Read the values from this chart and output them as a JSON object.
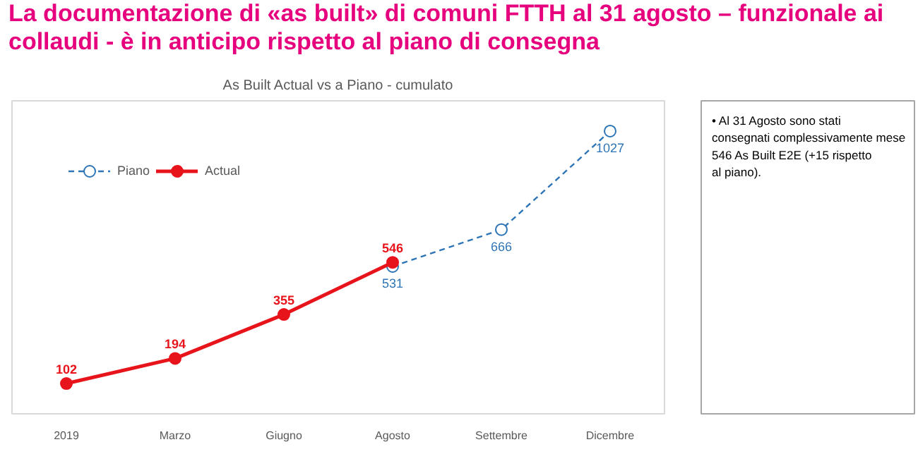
{
  "chart_data": {
    "type": "line",
    "title": "La documentazione di «as built» di comuni FTTH al 31 agosto – funzionale ai collaudi - è in anticipo rispetto al piano di consegna",
    "subtitle": "As Built Actual vs a Piano - cumulato",
    "categories": [
      "2019",
      "Marzo",
      "Giugno",
      "Agosto",
      "Settembre",
      "Dicembre"
    ],
    "series": [
      {
        "name": "Piano",
        "color": "#2e75b6",
        "marker": "circle",
        "line_style": "dashed",
        "values": [
          null,
          null,
          null,
          531,
          666,
          1027
        ]
      },
      {
        "name": "Actual",
        "color": "#e8141b",
        "marker": "circle",
        "line_style": "solid",
        "values": [
          102,
          194,
          355,
          546,
          null,
          null
        ]
      }
    ],
    "data_labels": true,
    "legend": "top left",
    "grid": false,
    "annotations": [
      "• Al 31 Agosto sono stati consegnati complessivamente mese 546 As Built E2E (+15 rispetto al piano)."
    ]
  }
}
